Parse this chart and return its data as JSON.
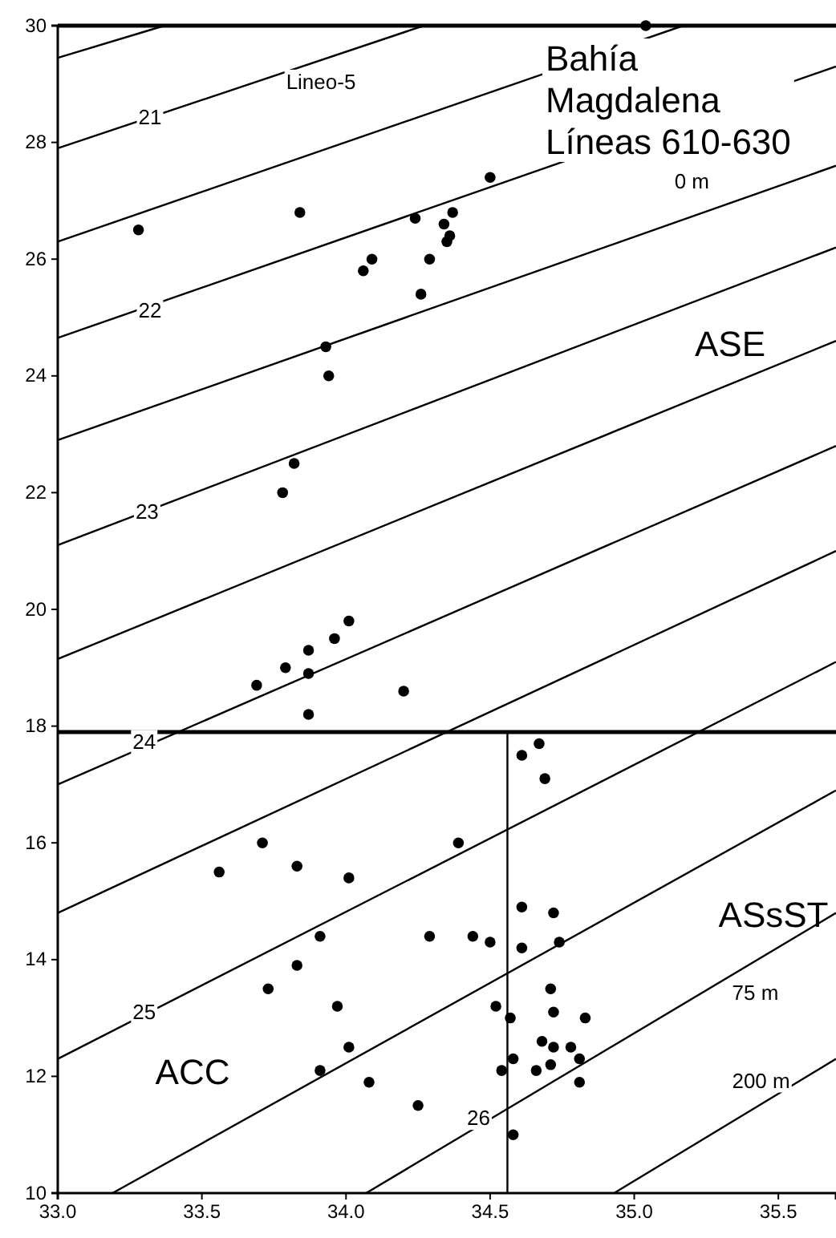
{
  "chart_data": {
    "type": "scatter",
    "title": "Bahía Magdalena Líneas 610-630",
    "xlim": [
      33,
      35.7
    ],
    "xticks": [
      {
        "value": 33,
        "label": "33.0"
      },
      {
        "value": 33.5,
        "label": "33.5"
      },
      {
        "value": 34,
        "label": "34.0"
      },
      {
        "value": 34.5,
        "label": "34.5"
      },
      {
        "value": 35,
        "label": "35.0"
      },
      {
        "value": 35.5,
        "label": "35.5"
      }
    ],
    "ylim": [
      10,
      30
    ],
    "yticks": [
      10,
      12,
      14,
      16,
      18,
      20,
      22,
      24,
      26,
      28,
      30
    ],
    "grid": false,
    "series": [
      {
        "marker": "circle",
        "color": "#000000",
        "x": [
          33.28,
          33.84,
          35.04,
          34.5,
          34.24,
          34.37,
          34.34,
          34.36,
          34.35,
          34.09,
          34.06,
          34.29,
          34.26,
          33.93,
          33.94,
          33.82,
          33.78,
          34.01,
          33.96,
          33.87,
          33.79,
          33.87,
          33.69,
          34.2,
          33.87,
          34.61,
          34.67,
          34.69,
          33.71,
          34.39,
          33.56,
          33.83,
          34.01,
          34.61,
          34.72,
          33.91,
          34.29,
          34.44,
          34.5,
          34.74,
          34.61,
          33.83,
          33.73,
          34.71,
          33.97,
          34.52,
          34.72,
          34.57,
          34.83,
          34.68,
          34.72,
          34.78,
          34.01,
          34.58,
          34.81,
          34.71,
          33.91,
          34.54,
          34.66,
          34.08,
          34.81,
          34.25,
          34.58
        ],
        "values": [
          26.5,
          26.8,
          30,
          27.4,
          26.7,
          26.8,
          26.6,
          26.4,
          26.3,
          26,
          25.8,
          26,
          25.4,
          24.5,
          24,
          22.5,
          22,
          19.8,
          19.5,
          19.3,
          19,
          18.9,
          18.7,
          18.6,
          18.2,
          17.5,
          17.7,
          17.1,
          16,
          16,
          15.5,
          15.6,
          15.4,
          14.9,
          14.8,
          14.4,
          14.4,
          14.4,
          14.3,
          14.3,
          14.2,
          13.9,
          13.5,
          13.5,
          13.2,
          13.2,
          13.1,
          13,
          13,
          12.6,
          12.5,
          12.5,
          12.5,
          12.3,
          12.3,
          12.2,
          12.1,
          12.1,
          12.1,
          11.9,
          11.9,
          11.5,
          11
        ]
      },
      {
        "type": "line",
        "color": "#000000",
        "x": [
          33,
          33.37
        ],
        "values": [
          29.45,
          30
        ]
      },
      {
        "type": "line",
        "color": "#000000",
        "x": [
          33,
          34.27
        ],
        "values": [
          27.9,
          30
        ]
      },
      {
        "type": "line",
        "color": "#000000",
        "x": [
          33,
          35.17
        ],
        "values": [
          26.3,
          30
        ]
      },
      {
        "type": "line",
        "color": "#000000",
        "x": [
          33,
          35.7
        ],
        "values": [
          24.65,
          29.3
        ]
      },
      {
        "type": "line",
        "color": "#000000",
        "x": [
          33,
          35.7
        ],
        "values": [
          22.9,
          27.6
        ]
      },
      {
        "type": "line",
        "color": "#000000",
        "x": [
          33,
          35.7
        ],
        "values": [
          21.1,
          26.2
        ]
      },
      {
        "type": "line",
        "color": "#000000",
        "x": [
          33,
          35.7
        ],
        "values": [
          19.15,
          24.6
        ]
      },
      {
        "type": "line",
        "color": "#000000",
        "x": [
          33,
          35.7
        ],
        "values": [
          17,
          22.8
        ]
      },
      {
        "type": "line",
        "color": "#000000",
        "x": [
          33,
          35.7
        ],
        "values": [
          14.8,
          21
        ]
      },
      {
        "type": "line",
        "color": "#000000",
        "x": [
          33,
          35.7
        ],
        "values": [
          12.3,
          19.1
        ]
      },
      {
        "type": "line",
        "color": "#000000",
        "x": [
          33.19,
          35.7
        ],
        "values": [
          10,
          16.9
        ]
      },
      {
        "type": "line",
        "color": "#000000",
        "x": [
          34.07,
          35.7
        ],
        "values": [
          10,
          14.8
        ]
      },
      {
        "type": "line",
        "color": "#000000",
        "x": [
          34.93,
          35.7
        ],
        "values": [
          10,
          12.3
        ]
      },
      {
        "type": "line",
        "color": "#000000",
        "x": [
          34.56,
          34.56
        ],
        "values": [
          10,
          17.9
        ]
      }
    ],
    "ref_lines": [
      {
        "axis": "y",
        "value": 17.9,
        "color": "#000000"
      }
    ],
    "annotations": [
      {
        "text": "21",
        "x": 33.32,
        "y": 28.4
      },
      {
        "text": "22",
        "x": 33.32,
        "y": 25.1
      },
      {
        "text": "23",
        "x": 33.31,
        "y": 21.65
      },
      {
        "text": "24",
        "x": 33.3,
        "y": 17.7
      },
      {
        "text": "25",
        "x": 33.3,
        "y": 13.08
      },
      {
        "text": "26",
        "x": 34.46,
        "y": 11.26
      },
      "Lineo-5",
      {
        "text": "0 m",
        "x": 35.2,
        "y": 27.3
      },
      "ASE",
      "ASsST",
      "ACC",
      {
        "text": "75 m",
        "x": 35.42,
        "y": 13.4
      },
      {
        "text": "200 m",
        "x": 35.44,
        "y": 11.9
      }
    ]
  }
}
